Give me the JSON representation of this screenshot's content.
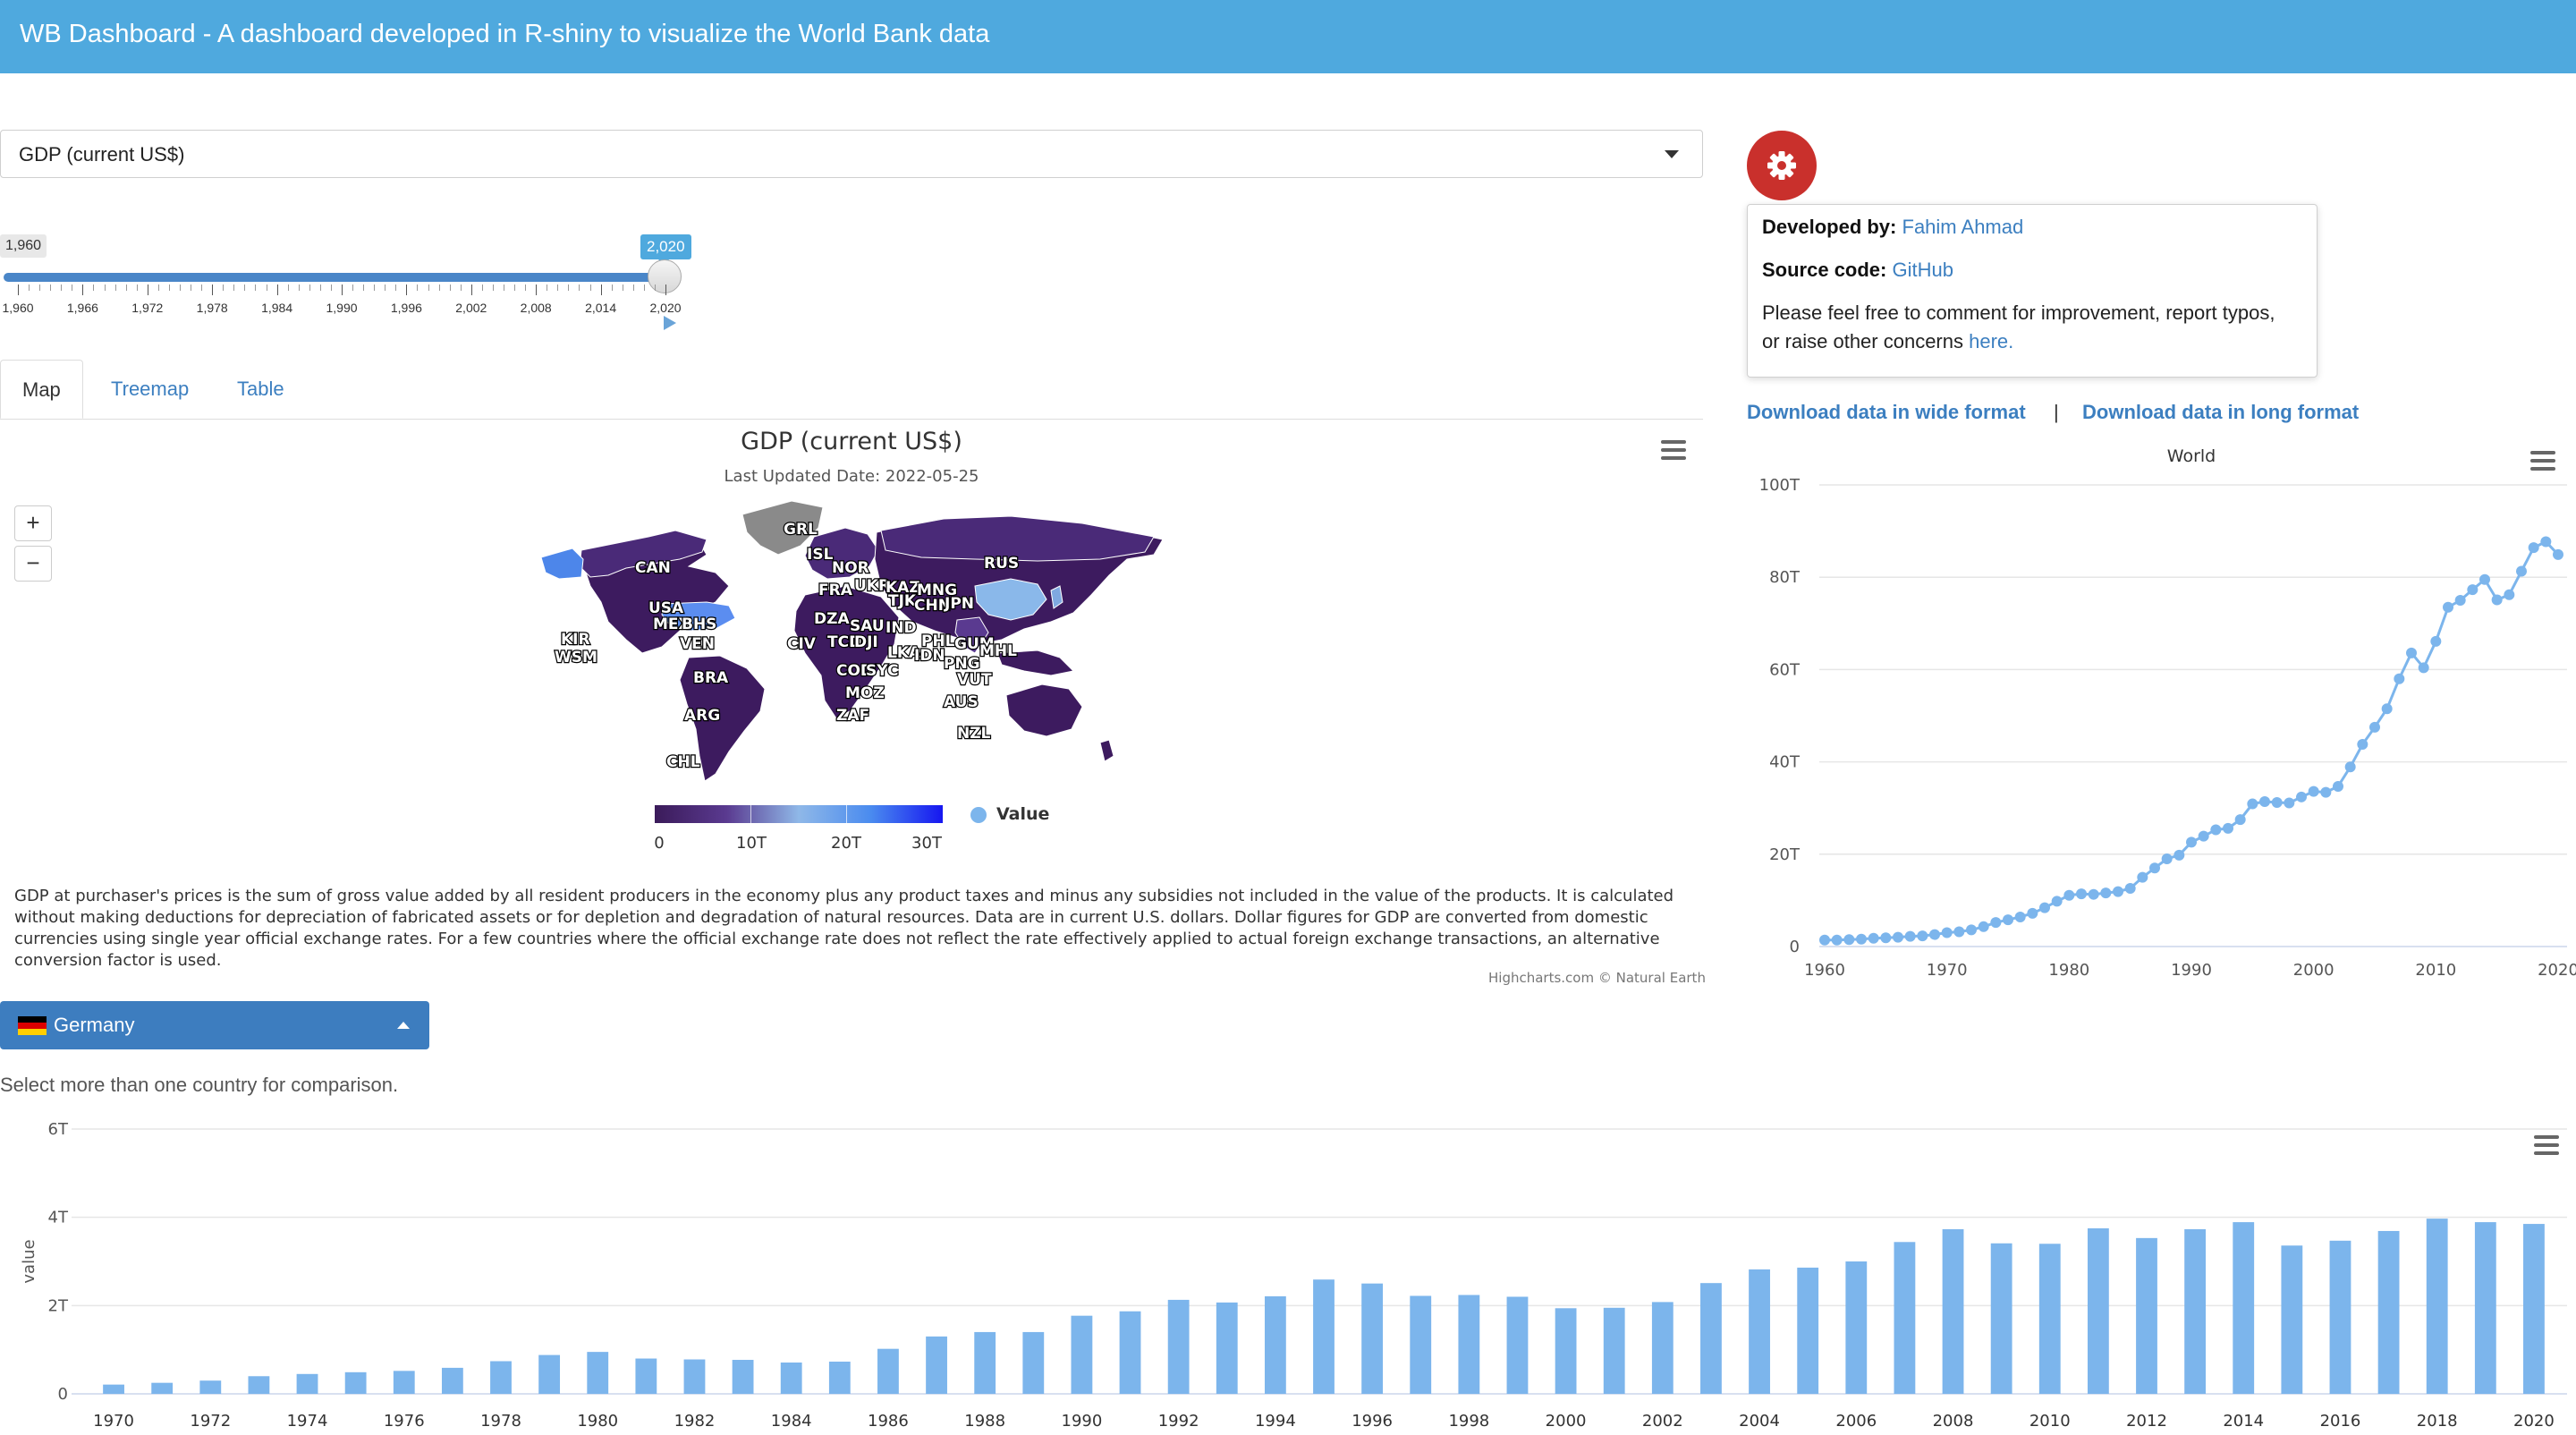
{
  "header": {
    "title": "WB Dashboard - A dashboard developed in R-shiny to visualize the World Bank data"
  },
  "indicator_select": {
    "value": "GDP (current US$)"
  },
  "year_slider": {
    "min_label": "1,960",
    "max_label": "2,020",
    "tick_labels": [
      "1,960",
      "1,966",
      "1,972",
      "1,978",
      "1,984",
      "1,990",
      "1,996",
      "2,002",
      "2,008",
      "2,014",
      "2,020"
    ]
  },
  "tabs": [
    "Map",
    "Treemap",
    "Table"
  ],
  "map": {
    "title": "GDP (current US$)",
    "subtitle": "Last Updated Date: 2022-05-25",
    "zoom_in": "+",
    "zoom_out": "−",
    "legend_labels": [
      "0",
      "10T",
      "20T",
      "30T"
    ],
    "legend_name": "Value",
    "credits": "Highcharts.com © Natural Earth",
    "country_labels": [
      "CAN",
      "GRL",
      "ISL",
      "NOR",
      "RUS",
      "USA",
      "FRA",
      "UKR",
      "KAZ",
      "MNG",
      "TJK",
      "CHN",
      "JPN",
      "MEX",
      "BHS",
      "DZA",
      "SAU",
      "IND",
      "KIR",
      "WSM",
      "VEN",
      "CIV",
      "TCD",
      "DJI",
      "PHL",
      "GUM",
      "MHL",
      "LKA",
      "IDN",
      "PNG",
      "BRA",
      "COD",
      "SYC",
      "VUT",
      "MOZ",
      "AUS",
      "ARG",
      "ZAF",
      "NZL",
      "CHL"
    ]
  },
  "description": "GDP at purchaser's prices is the sum of gross value added by all resident producers in the economy plus any product taxes and minus any subsidies not included in the value of the products. It is calculated without making deductions for depreciation of fabricated assets or for depletion and degradation of natural resources. Data are in current U.S. dollars. Dollar figures for GDP are converted from domestic currencies using single year official exchange rates. For a few countries where the official exchange rate does not reflect the rate effectively applied to actual foreign exchange transactions, an alternative conversion factor is used.",
  "country_picker": {
    "selected": "Germany",
    "helper": "Select more than one country for comparison."
  },
  "info": {
    "developed_label": "Developed by:",
    "developer": "Fahim Ahmad",
    "source_label": "Source code:",
    "source": "GitHub",
    "feedback_line1": "Please feel free to comment for improvement, report typos,",
    "feedback_line2": "or raise other concerns",
    "feedback_link": "here."
  },
  "downloads": {
    "wide": "Download data in wide format",
    "separator": "|",
    "long": "Download data in long format"
  },
  "colors": {
    "header": "#4fa9de",
    "series": "#7cb5ec",
    "gear": "#c9302c",
    "link": "#3c7fc0"
  },
  "chart_data": [
    {
      "type": "line",
      "title": "World",
      "x": [
        1960,
        1961,
        1962,
        1963,
        1964,
        1965,
        1966,
        1967,
        1968,
        1969,
        1970,
        1971,
        1972,
        1973,
        1974,
        1975,
        1976,
        1977,
        1978,
        1979,
        1980,
        1981,
        1982,
        1983,
        1984,
        1985,
        1986,
        1987,
        1988,
        1989,
        1990,
        1991,
        1992,
        1993,
        1994,
        1995,
        1996,
        1997,
        1998,
        1999,
        2000,
        2001,
        2002,
        2003,
        2004,
        2005,
        2006,
        2007,
        2008,
        2009,
        2010,
        2011,
        2012,
        2013,
        2014,
        2015,
        2016,
        2017,
        2018,
        2019,
        2020
      ],
      "values": [
        1.4,
        1.4,
        1.5,
        1.6,
        1.8,
        1.9,
        2.0,
        2.2,
        2.3,
        2.6,
        3.0,
        3.2,
        3.6,
        4.3,
        5.2,
        5.8,
        6.4,
        7.2,
        8.4,
        9.8,
        11.1,
        11.4,
        11.3,
        11.6,
        11.9,
        12.6,
        15.0,
        17.0,
        19.0,
        19.8,
        22.6,
        23.9,
        25.3,
        25.6,
        27.5,
        30.9,
        31.4,
        31.2,
        31.1,
        32.4,
        33.6,
        33.4,
        34.7,
        38.9,
        43.8,
        47.5,
        51.5,
        58.0,
        63.6,
        60.4,
        66.1,
        73.5,
        75.0,
        77.3,
        79.5,
        75.1,
        76.2,
        81.3,
        86.4,
        87.7,
        84.9
      ],
      "ylim": [
        0,
        100
      ],
      "y_ticks": [
        "0",
        "20T",
        "40T",
        "60T",
        "80T",
        "100T"
      ],
      "x_ticks": [
        "1960",
        "1970",
        "1980",
        "1990",
        "2000",
        "2010",
        "2020"
      ]
    },
    {
      "type": "bar",
      "ylabel": "value",
      "x": [
        1970,
        1971,
        1972,
        1973,
        1974,
        1975,
        1976,
        1977,
        1978,
        1979,
        1980,
        1981,
        1982,
        1983,
        1984,
        1985,
        1986,
        1987,
        1988,
        1989,
        1990,
        1991,
        1992,
        1993,
        1994,
        1995,
        1996,
        1997,
        1998,
        1999,
        2000,
        2001,
        2002,
        2003,
        2004,
        2005,
        2006,
        2007,
        2008,
        2009,
        2010,
        2011,
        2012,
        2013,
        2014,
        2015,
        2016,
        2017,
        2018,
        2019,
        2020
      ],
      "values": [
        0.21,
        0.25,
        0.3,
        0.4,
        0.45,
        0.49,
        0.52,
        0.59,
        0.74,
        0.88,
        0.95,
        0.8,
        0.78,
        0.77,
        0.71,
        0.73,
        1.02,
        1.3,
        1.4,
        1.4,
        1.77,
        1.87,
        2.13,
        2.07,
        2.21,
        2.59,
        2.5,
        2.22,
        2.24,
        2.2,
        1.94,
        1.95,
        2.08,
        2.51,
        2.82,
        2.86,
        3.0,
        3.44,
        3.73,
        3.41,
        3.4,
        3.75,
        3.53,
        3.73,
        3.89,
        3.36,
        3.47,
        3.69,
        3.97,
        3.89,
        3.85
      ],
      "ylim": [
        0,
        6
      ],
      "y_ticks": [
        "0",
        "2T",
        "4T",
        "6T"
      ],
      "x_ticks": [
        "1970",
        "1972",
        "1974",
        "1976",
        "1978",
        "1980",
        "1982",
        "1984",
        "1986",
        "1988",
        "1990",
        "1992",
        "1994",
        "1996",
        "1998",
        "2000",
        "2002",
        "2004",
        "2006",
        "2008",
        "2010",
        "2012",
        "2014",
        "2016",
        "2018",
        "2020"
      ]
    }
  ]
}
